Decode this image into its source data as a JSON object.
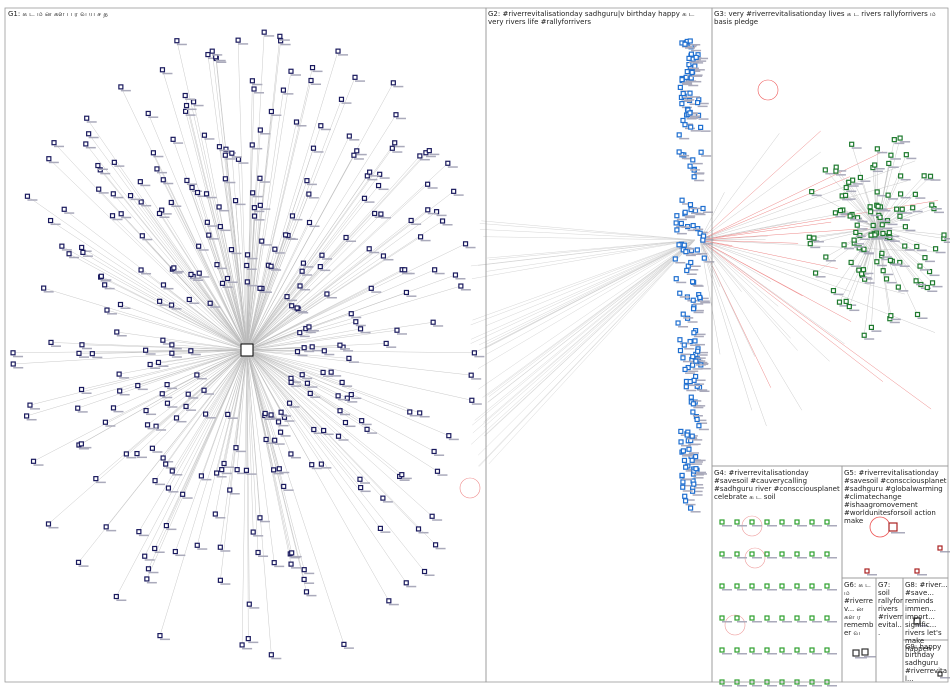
{
  "groups": [
    {
      "label": "G1: க ட ம ன கள ப ர வ ய ச த"
    },
    {
      "label": "G2: #riverrevitalisationday sadhguru|v birthday happy க ட very rivers life #rallyforrivers"
    },
    {
      "label": "G3: very #riverrevitalisationday lives க ட rivers rallyforrivers ம basis pledge"
    },
    {
      "label": "G4: #riverrevitalisationday #savesoil #cauverycalling #sadhguru river #conscciousplanet celebrate க ட soil"
    },
    {
      "label": "G5: #riverrevitalisationday #savesoil #conscciousplanet #sadhguru #globalwarming #climatechange #ishaagromovement #worldunitesforsoil action make"
    },
    {
      "label": "G6: க ட ம #riverrev... ன கள ர remember வ"
    },
    {
      "label": "G7: soil rallyforrivers #riverrevital..."
    },
    {
      "label": "G8: #river... #save... reminds immen... import... signific... rivers let's make happen"
    },
    {
      "label": "G9: happy birthday sadhguru #riverrevital..."
    }
  ]
}
